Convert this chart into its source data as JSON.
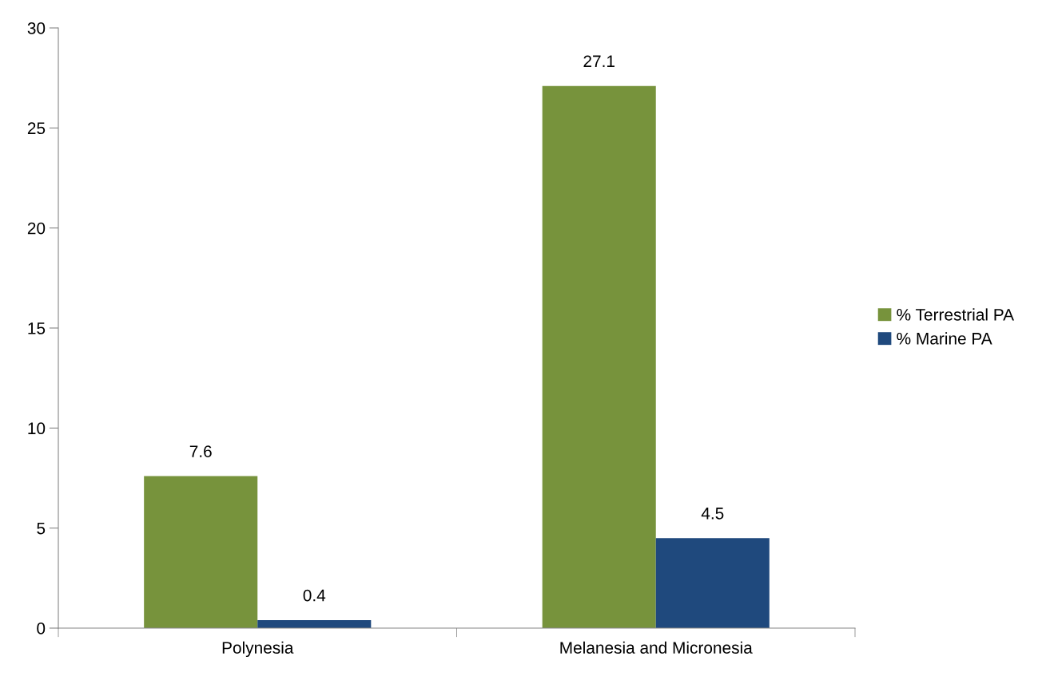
{
  "chart_data": {
    "type": "bar",
    "categories": [
      "Polynesia",
      "Melanesia and Micronesia"
    ],
    "series": [
      {
        "name": "% Terrestrial PA",
        "color": "#77933c",
        "values": [
          7.6,
          27.1
        ]
      },
      {
        "name": "% Marine PA",
        "color": "#1f497d",
        "values": [
          0.4,
          4.5
        ]
      }
    ],
    "ylim": [
      0,
      30
    ],
    "yticks": [
      0,
      5,
      10,
      15,
      20,
      25,
      30
    ],
    "data_labels": true,
    "grid": false,
    "legend": "right"
  }
}
